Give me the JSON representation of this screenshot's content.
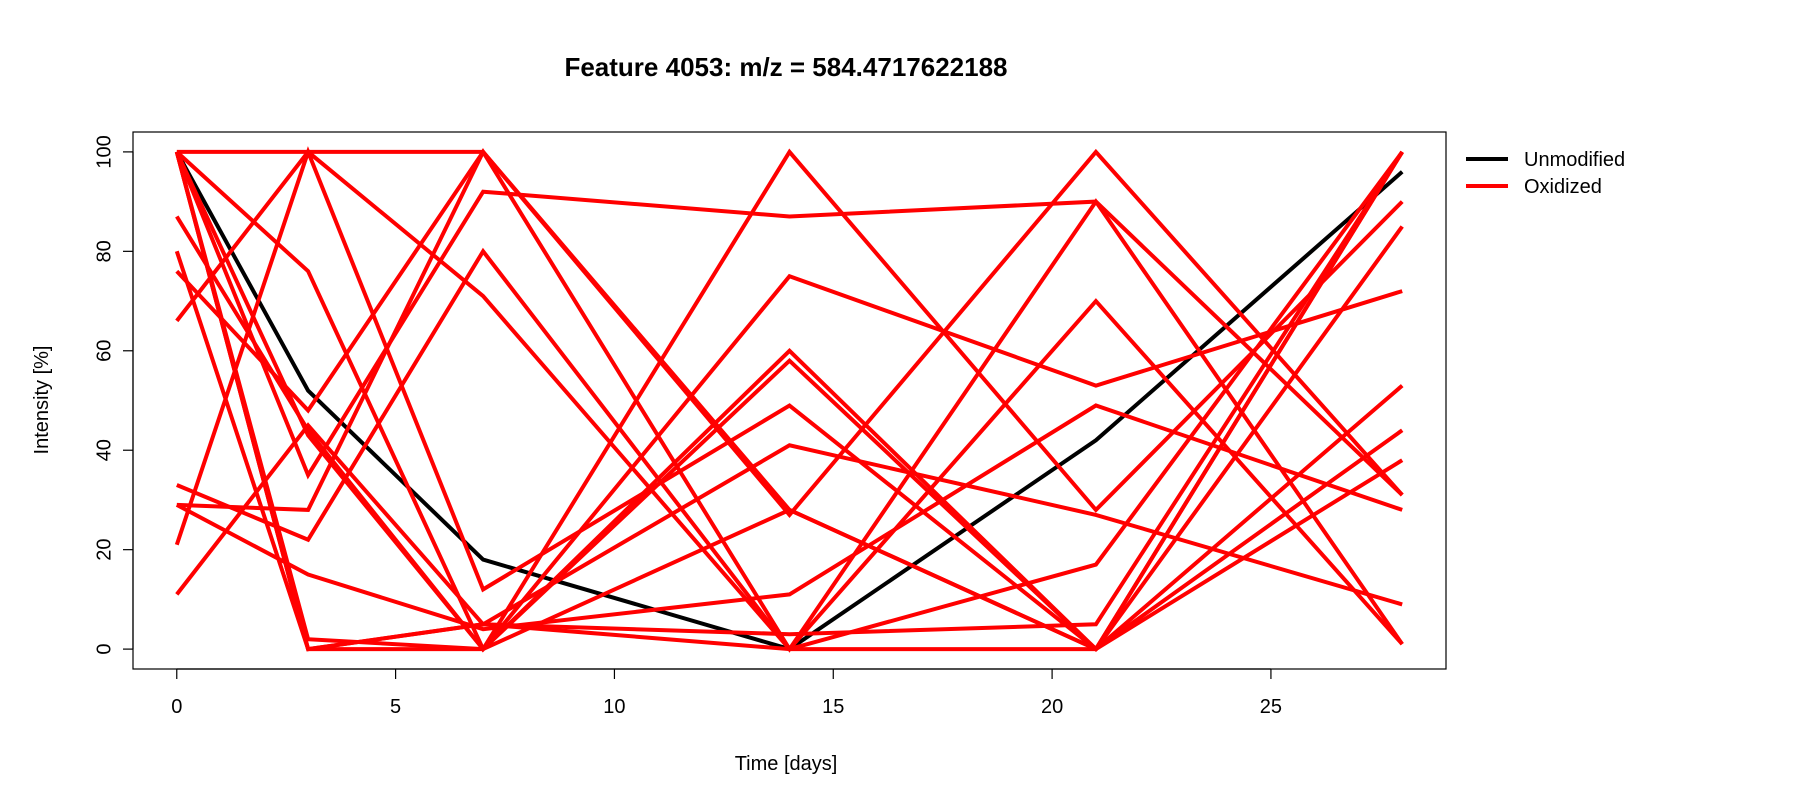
{
  "chart_data": {
    "type": "line",
    "title": "Feature 4053: m/z = 584.4717622188",
    "xlabel": "Time [days]",
    "ylabel": "Intensity [%]",
    "xlim": [
      -1,
      29
    ],
    "ylim": [
      -4,
      104
    ],
    "x_ticks": [
      "0",
      "5",
      "10",
      "15",
      "20",
      "25"
    ],
    "y_ticks": [
      "0",
      "20",
      "40",
      "60",
      "80",
      "100"
    ],
    "x": [
      0,
      3,
      7,
      14,
      21,
      28
    ],
    "legend": {
      "position": "top-right-outside",
      "entries": [
        {
          "label": "Unmodified",
          "color": "#000000"
        },
        {
          "label": "Oxidized",
          "color": "#ff0000"
        }
      ]
    },
    "series": [
      {
        "group": "Unmodified",
        "color": "#000000",
        "values": [
          100,
          52,
          18,
          0,
          42,
          96
        ]
      },
      {
        "group": "Oxidized",
        "color": "#ff0000",
        "values": [
          100,
          100,
          100,
          28,
          0,
          100
        ]
      },
      {
        "group": "Oxidized",
        "color": "#ff0000",
        "values": [
          66,
          100,
          71,
          0,
          70,
          1
        ]
      },
      {
        "group": "Oxidized",
        "color": "#ff0000",
        "values": [
          80,
          0,
          0,
          100,
          28,
          90
        ]
      },
      {
        "group": "Oxidized",
        "color": "#ff0000",
        "values": [
          87,
          44,
          0,
          75,
          53,
          72
        ]
      },
      {
        "group": "Oxidized",
        "color": "#ff0000",
        "values": [
          100,
          2,
          0,
          58,
          0,
          53
        ]
      },
      {
        "group": "Oxidized",
        "color": "#ff0000",
        "values": [
          76,
          48,
          100,
          0,
          90,
          1
        ]
      },
      {
        "group": "Oxidized",
        "color": "#ff0000",
        "values": [
          100,
          35,
          92,
          87,
          90,
          31
        ]
      },
      {
        "group": "Oxidized",
        "color": "#ff0000",
        "values": [
          29,
          28,
          100,
          27,
          100,
          31
        ]
      },
      {
        "group": "Oxidized",
        "color": "#ff0000",
        "values": [
          33,
          22,
          80,
          0,
          0,
          85
        ]
      },
      {
        "group": "Oxidized",
        "color": "#ff0000",
        "values": [
          100,
          76,
          0,
          60,
          0,
          44
        ]
      },
      {
        "group": "Oxidized",
        "color": "#ff0000",
        "values": [
          21,
          100,
          12,
          49,
          0,
          38
        ]
      },
      {
        "group": "Oxidized",
        "color": "#ff0000",
        "values": [
          11,
          45,
          5,
          41,
          27,
          9
        ]
      },
      {
        "group": "Oxidized",
        "color": "#ff0000",
        "values": [
          29,
          15,
          4,
          11,
          49,
          28
        ]
      },
      {
        "group": "Oxidized",
        "color": "#ff0000",
        "values": [
          100,
          0,
          5,
          3,
          5,
          100
        ]
      },
      {
        "group": "Oxidized",
        "color": "#ff0000",
        "values": [
          100,
          0,
          5,
          0,
          17,
          100
        ]
      },
      {
        "group": "Oxidized",
        "color": "#ff0000",
        "values": [
          100,
          43,
          0,
          28,
          0,
          100
        ]
      }
    ]
  }
}
